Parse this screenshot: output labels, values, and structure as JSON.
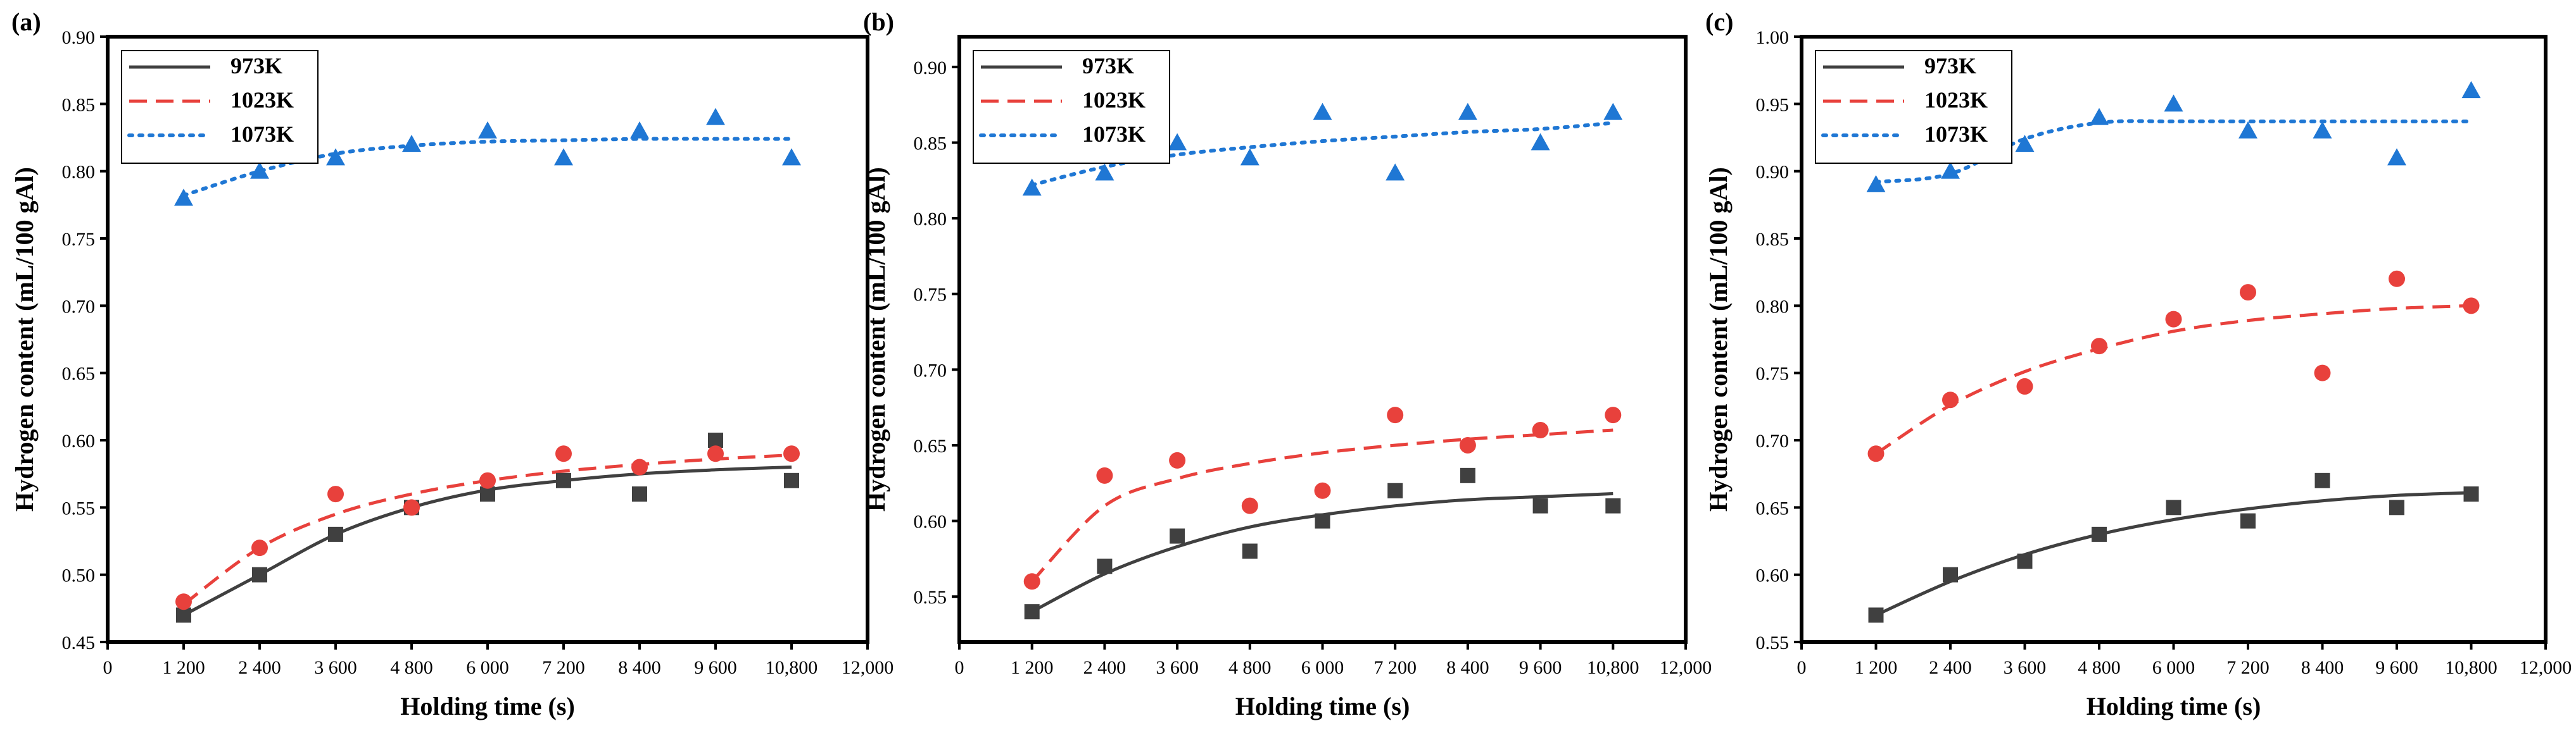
{
  "chart_data": [
    {
      "type": "scatter",
      "panel_label": "(a)",
      "xlabel": "Holding time (s)",
      "ylabel": "Hydrogen content (mL/100 gAl)",
      "xlim": [
        0,
        12000
      ],
      "ylim": [
        0.45,
        0.9
      ],
      "xticks": [
        0,
        1200,
        2400,
        3600,
        4800,
        6000,
        7200,
        8400,
        9600,
        10800,
        12000
      ],
      "xtick_labels": [
        "0",
        "1 200",
        "2 400",
        "3 600",
        "4 800",
        "6 000",
        "7 200",
        "8 400",
        "9 600",
        "10,800",
        "12,000"
      ],
      "yticks": [
        0.45,
        0.5,
        0.55,
        0.6,
        0.65,
        0.7,
        0.75,
        0.8,
        0.85,
        0.9
      ],
      "ytick_labels": [
        "0.45",
        "0.50",
        "0.55",
        "0.60",
        "0.65",
        "0.70",
        "0.75",
        "0.80",
        "0.85",
        "0.90"
      ],
      "legend_position": "top-left",
      "grid": false,
      "x": [
        1200,
        2400,
        3600,
        4800,
        6000,
        7200,
        8400,
        9600,
        10800
      ],
      "series": [
        {
          "name": "973K",
          "color": "#404040",
          "marker": "square",
          "line": "solid",
          "values": [
            0.47,
            0.5,
            0.53,
            0.55,
            0.56,
            0.57,
            0.56,
            0.6,
            0.57
          ],
          "fit": [
            0.47,
            0.5,
            0.53,
            0.55,
            0.563,
            0.57,
            0.575,
            0.578,
            0.58
          ]
        },
        {
          "name": "1023K",
          "color": "#e8413c",
          "marker": "circle",
          "line": "dashed",
          "values": [
            0.48,
            0.52,
            0.56,
            0.55,
            0.57,
            0.59,
            0.58,
            0.59,
            0.59
          ],
          "fit": [
            0.478,
            0.52,
            0.545,
            0.56,
            0.57,
            0.577,
            0.582,
            0.586,
            0.589
          ]
        },
        {
          "name": "1073K",
          "color": "#1f77d4",
          "marker": "triangle",
          "line": "dotted",
          "values": [
            0.78,
            0.8,
            0.81,
            0.82,
            0.83,
            0.81,
            0.83,
            0.84,
            0.81
          ],
          "fit": [
            0.782,
            0.8,
            0.813,
            0.819,
            0.822,
            0.823,
            0.824,
            0.824,
            0.824
          ]
        }
      ]
    },
    {
      "type": "scatter",
      "panel_label": "(b)",
      "xlabel": "Holding time (s)",
      "ylabel": "Hydrogen content (mL/100 gAl)",
      "xlim": [
        0,
        12000
      ],
      "ylim": [
        0.52,
        0.92
      ],
      "xticks": [
        0,
        1200,
        2400,
        3600,
        4800,
        6000,
        7200,
        8400,
        9600,
        10800,
        12000
      ],
      "xtick_labels": [
        "0",
        "1 200",
        "2 400",
        "3 600",
        "4 800",
        "6 000",
        "7 200",
        "8 400",
        "9 600",
        "10,800",
        "12,000"
      ],
      "yticks": [
        0.55,
        0.6,
        0.65,
        0.7,
        0.75,
        0.8,
        0.85,
        0.9
      ],
      "ytick_labels": [
        "0.55",
        "0.60",
        "0.65",
        "0.70",
        "0.75",
        "0.80",
        "0.85",
        "0.90"
      ],
      "legend_position": "top-left",
      "grid": false,
      "x": [
        1200,
        2400,
        3600,
        4800,
        6000,
        7200,
        8400,
        9600,
        10800
      ],
      "series": [
        {
          "name": "973K",
          "color": "#404040",
          "marker": "square",
          "line": "solid",
          "values": [
            0.54,
            0.57,
            0.59,
            0.58,
            0.6,
            0.62,
            0.63,
            0.61,
            0.61
          ],
          "fit": [
            0.54,
            0.565,
            0.583,
            0.596,
            0.604,
            0.61,
            0.614,
            0.616,
            0.618
          ]
        },
        {
          "name": "1023K",
          "color": "#e8413c",
          "marker": "circle",
          "line": "dashed",
          "values": [
            0.56,
            0.63,
            0.64,
            0.61,
            0.62,
            0.67,
            0.65,
            0.66,
            0.67
          ],
          "fit": [
            0.56,
            0.61,
            0.628,
            0.638,
            0.645,
            0.65,
            0.654,
            0.657,
            0.66
          ]
        },
        {
          "name": "1073K",
          "color": "#1f77d4",
          "marker": "triangle",
          "line": "dotted",
          "values": [
            0.82,
            0.83,
            0.85,
            0.84,
            0.87,
            0.83,
            0.87,
            0.85,
            0.87
          ],
          "fit": [
            0.822,
            0.834,
            0.842,
            0.847,
            0.851,
            0.854,
            0.857,
            0.859,
            0.863
          ]
        }
      ]
    },
    {
      "type": "scatter",
      "panel_label": "(c)",
      "xlabel": "Holding time (s)",
      "ylabel": "Hydrogen content (mL/100 gAl)",
      "xlim": [
        0,
        12000
      ],
      "ylim": [
        0.55,
        1.0
      ],
      "xticks": [
        0,
        1200,
        2400,
        3600,
        4800,
        6000,
        7200,
        8400,
        9600,
        10800,
        12000
      ],
      "xtick_labels": [
        "0",
        "1 200",
        "2 400",
        "3 600",
        "4 800",
        "6 000",
        "7 200",
        "8 400",
        "9 600",
        "10,800",
        "12,000"
      ],
      "yticks": [
        0.55,
        0.6,
        0.65,
        0.7,
        0.75,
        0.8,
        0.85,
        0.9,
        0.95,
        1.0
      ],
      "ytick_labels": [
        "0.55",
        "0.60",
        "0.65",
        "0.70",
        "0.75",
        "0.80",
        "0.85",
        "0.90",
        "0.95",
        "1.00"
      ],
      "legend_position": "top-left",
      "grid": false,
      "x": [
        1200,
        2400,
        3600,
        4800,
        6000,
        7200,
        8400,
        9600,
        10800
      ],
      "series": [
        {
          "name": "973K",
          "color": "#404040",
          "marker": "square",
          "line": "solid",
          "values": [
            0.57,
            0.6,
            0.61,
            0.63,
            0.65,
            0.64,
            0.67,
            0.65,
            0.66
          ],
          "fit": [
            0.57,
            0.595,
            0.615,
            0.63,
            0.641,
            0.649,
            0.655,
            0.659,
            0.661
          ]
        },
        {
          "name": "1023K",
          "color": "#e8413c",
          "marker": "circle",
          "line": "dashed",
          "values": [
            0.69,
            0.73,
            0.74,
            0.77,
            0.79,
            0.81,
            0.75,
            0.82,
            0.8
          ],
          "fit": [
            0.69,
            0.726,
            0.751,
            0.768,
            0.781,
            0.789,
            0.794,
            0.798,
            0.8
          ]
        },
        {
          "name": "1073K",
          "color": "#1f77d4",
          "marker": "triangle",
          "line": "dotted",
          "values": [
            0.89,
            0.9,
            0.92,
            0.94,
            0.95,
            0.93,
            0.93,
            0.91,
            0.96
          ],
          "fit": [
            0.892,
            0.898,
            0.924,
            0.936,
            0.937,
            0.937,
            0.937,
            0.937,
            0.937
          ]
        }
      ]
    }
  ]
}
